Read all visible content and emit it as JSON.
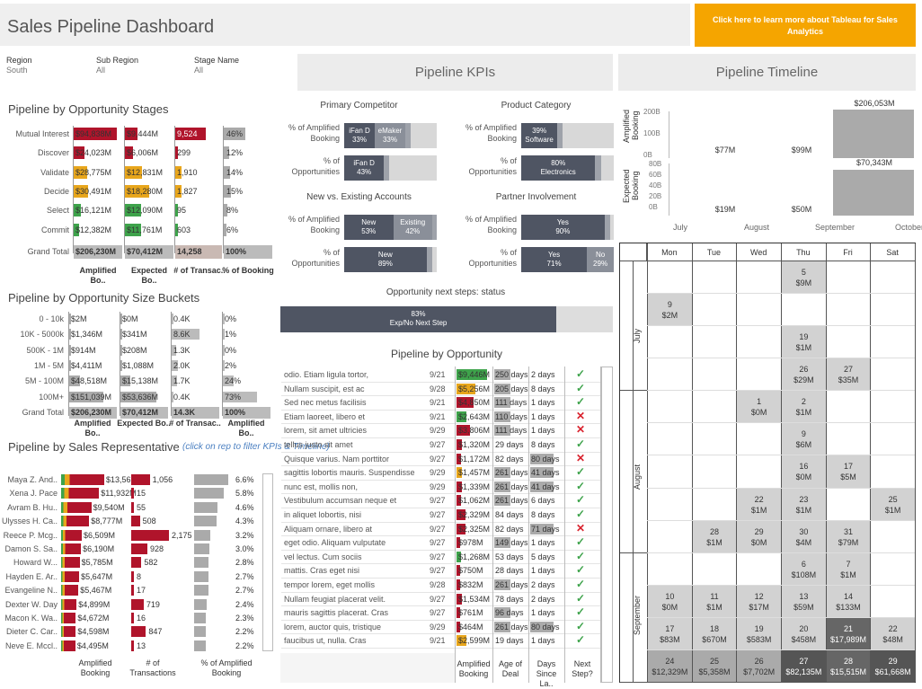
{
  "header": {
    "title": "Sales Pipeline Dashboard",
    "cta": "Click here to learn more about Tableau for Sales Analytics"
  },
  "filters": [
    {
      "label": "Region",
      "value": "South"
    },
    {
      "label": "Sub Region",
      "value": "All"
    },
    {
      "label": "Stage Name",
      "value": "All"
    }
  ],
  "stages": {
    "title": "Pipeline by Opportunity Stages",
    "cols": [
      "Amplified Bo..",
      "Expected Bo..",
      "# of Transac..",
      "% of Booking"
    ],
    "rows": [
      {
        "label": "Mutual Interest",
        "amp": "$94,838M",
        "exp": "$9,444M",
        "tx": "9,524",
        "pct": "46%",
        "ampf": 0.46,
        "expf": 0.13,
        "txf": 0.66,
        "pctf": 0.46,
        "c": "red"
      },
      {
        "label": "Discover",
        "amp": "$24,023M",
        "exp": "$6,006M",
        "tx": "299",
        "pct": "12%",
        "ampf": 0.12,
        "expf": 0.09,
        "txf": 0.02,
        "pctf": 0.12,
        "c": "red"
      },
      {
        "label": "Validate",
        "amp": "$28,775M",
        "exp": "$12,831M",
        "tx": "1,910",
        "pct": "14%",
        "ampf": 0.14,
        "expf": 0.18,
        "txf": 0.13,
        "pctf": 0.14,
        "c": "ora"
      },
      {
        "label": "Decide",
        "amp": "$30,491M",
        "exp": "$18,280M",
        "tx": "1,827",
        "pct": "15%",
        "ampf": 0.15,
        "expf": 0.26,
        "txf": 0.13,
        "pctf": 0.15,
        "c": "ora"
      },
      {
        "label": "Select",
        "amp": "$16,121M",
        "exp": "$12,090M",
        "tx": "95",
        "pct": "8%",
        "ampf": 0.08,
        "expf": 0.17,
        "txf": 0.01,
        "pctf": 0.08,
        "c": "grn"
      },
      {
        "label": "Commit",
        "amp": "$12,382M",
        "exp": "$11,761M",
        "tx": "603",
        "pct": "6%",
        "ampf": 0.06,
        "expf": 0.17,
        "txf": 0.04,
        "pctf": 0.06,
        "c": "grn"
      }
    ],
    "total": {
      "label": "Grand Total",
      "amp": "$206,230M",
      "exp": "$70,412M",
      "tx": "14,258",
      "pct": "100%"
    }
  },
  "sizes": {
    "title": "Pipeline by Opportunity Size Buckets",
    "cols": [
      "Amplified Bo..",
      "Expected Bo..",
      "# of Transac..",
      "Amplified Bo.."
    ],
    "rows": [
      {
        "label": "0 - 10k",
        "a": "$2M",
        "e": "$0M",
        "t": "0.4K",
        "p": "0%",
        "af": 0,
        "ef": 0,
        "tf": 0.03,
        "pf": 0
      },
      {
        "label": "10K - 5000k",
        "a": "$1,346M",
        "e": "$341M",
        "t": "8.6K",
        "p": "1%",
        "af": 0.01,
        "ef": 0.01,
        "tf": 0.6,
        "pf": 0.01
      },
      {
        "label": "500K - 1M",
        "a": "$914M",
        "e": "$208M",
        "t": "1.3K",
        "p": "0%",
        "af": 0.01,
        "ef": 0.01,
        "tf": 0.09,
        "pf": 0
      },
      {
        "label": "1M - 5M",
        "a": "$4,411M",
        "e": "$1,088M",
        "t": "2.0K",
        "p": "2%",
        "af": 0.02,
        "ef": 0.02,
        "tf": 0.14,
        "pf": 0.02
      },
      {
        "label": "5M - 100M",
        "a": "$48,518M",
        "e": "$15,138M",
        "t": "1.7K",
        "p": "24%",
        "af": 0.24,
        "ef": 0.21,
        "tf": 0.12,
        "pf": 0.24
      },
      {
        "label": "100M+",
        "a": "$151,039M",
        "e": "$53,636M",
        "t": "0.4K",
        "p": "73%",
        "af": 0.73,
        "ef": 0.76,
        "tf": 0.03,
        "pf": 0.73
      }
    ],
    "total": {
      "label": "Grand Total",
      "a": "$206,230M",
      "e": "$70,412M",
      "t": "14.3K",
      "p": "100%"
    }
  },
  "reps": {
    "title": "Pipeline by Sales Representative",
    "hint": "(click on rep to filter KPIs & Timeline)",
    "cols": [
      "Amplified Booking",
      "# of Transactions",
      "% of Amplified Booking"
    ],
    "rows": [
      {
        "n": "Maya Z. And..",
        "a": "$13,567M",
        "t": "1,056",
        "p": "6.6%",
        "af": 1.0,
        "tf": 0.49,
        "pf": 0.9
      },
      {
        "n": "Xena J. Pace",
        "a": "$11,932M",
        "t": "15",
        "p": "5.8%",
        "af": 0.88,
        "tf": 0.01,
        "pf": 0.79
      },
      {
        "n": "Avram B. Hu..",
        "a": "$9,540M",
        "t": "55",
        "p": "4.6%",
        "af": 0.7,
        "tf": 0.03,
        "pf": 0.63
      },
      {
        "n": "Ulysses H. Ca..",
        "a": "$8,777M",
        "t": "508",
        "p": "4.3%",
        "af": 0.65,
        "tf": 0.23,
        "pf": 0.59
      },
      {
        "n": "Reece P. Mcg..",
        "a": "$6,509M",
        "t": "2,175",
        "p": "3.2%",
        "af": 0.48,
        "tf": 1.0,
        "pf": 0.44
      },
      {
        "n": "Damon S. Sa..",
        "a": "$6,190M",
        "t": "928",
        "p": "3.0%",
        "af": 0.46,
        "tf": 0.43,
        "pf": 0.41
      },
      {
        "n": "Howard W...",
        "a": "$5,785M",
        "t": "582",
        "p": "2.8%",
        "af": 0.43,
        "tf": 0.27,
        "pf": 0.38
      },
      {
        "n": "Hayden E. Ar..",
        "a": "$5,647M",
        "t": "8",
        "p": "2.7%",
        "af": 0.42,
        "tf": 0.01,
        "pf": 0.37
      },
      {
        "n": "Evangeline N..",
        "a": "$5,467M",
        "t": "17",
        "p": "2.7%",
        "af": 0.4,
        "tf": 0.01,
        "pf": 0.37
      },
      {
        "n": "Dexter W. Day",
        "a": "$4,899M",
        "t": "719",
        "p": "2.4%",
        "af": 0.36,
        "tf": 0.33,
        "pf": 0.33
      },
      {
        "n": "Macon K. Wa..",
        "a": "$4,672M",
        "t": "16",
        "p": "2.3%",
        "af": 0.34,
        "tf": 0.01,
        "pf": 0.32
      },
      {
        "n": "Dieter C. Car..",
        "a": "$4,598M",
        "t": "847",
        "p": "2.2%",
        "af": 0.34,
        "tf": 0.39,
        "pf": 0.3
      },
      {
        "n": "Neve E. Mccl..",
        "a": "$4,495M",
        "t": "13",
        "p": "2.2%",
        "af": 0.33,
        "tf": 0.01,
        "pf": 0.3
      }
    ]
  },
  "kpis": {
    "title": "Pipeline KPIs",
    "competitor": {
      "title": "Primary Competitor",
      "r1": "% of Amplified Booking",
      "r2": "% of Opportunities",
      "s1": [
        {
          "l": "iFan D",
          "v": "33%",
          "w": 0.33
        },
        {
          "l": "eMaker",
          "v": "33%",
          "w": 0.33
        }
      ],
      "s2": [
        {
          "l": "iFan D",
          "v": "43%",
          "w": 0.43
        }
      ]
    },
    "category": {
      "title": "Product Category",
      "r1": "% of Amplified Booking",
      "r2": "% of Opportunities",
      "s1": [
        {
          "l": "39%",
          "v": "Software",
          "w": 0.39
        }
      ],
      "s2": [
        {
          "l": "80%",
          "v": "Electronics",
          "w": 0.8
        }
      ]
    },
    "newexist": {
      "title": "New vs. Existing Accounts",
      "r1": "% of Amplified Booking",
      "r2": "% of Opportunities",
      "s1": [
        {
          "l": "New",
          "v": "53%",
          "w": 0.53
        },
        {
          "l": "Existing",
          "v": "42%",
          "w": 0.42
        }
      ],
      "s2": [
        {
          "l": "New",
          "v": "89%",
          "w": 0.89
        }
      ]
    },
    "partner": {
      "title": "Partner Involvement",
      "r1": "% of Amplified Booking",
      "r2": "% of Opportunities",
      "s1": [
        {
          "l": "Yes",
          "v": "90%",
          "w": 0.9
        }
      ],
      "s2": [
        {
          "l": "Yes",
          "v": "71%",
          "w": 0.71
        },
        {
          "l": "No",
          "v": "29%",
          "w": 0.29
        }
      ]
    },
    "nextsteps": {
      "title": "Opportunity next steps: status",
      "pct": "83%",
      "label": "Exp/No Next Step",
      "w": 0.83
    }
  },
  "opps": {
    "title": "Pipeline by Opportunity",
    "cols": [
      "Amplified Booking",
      "Age of Deal",
      "Days Since La..",
      "Next Step?"
    ],
    "rows": [
      {
        "n": "odio. Etiam ligula tortor,",
        "d": "9/21",
        "a": "$9,446M",
        "c": "grn",
        "af": 0.9,
        "age": "250 days",
        "ag": 1,
        "ds": "2 days",
        "dg": 0,
        "ok": true
      },
      {
        "n": "Nullam suscipit, est ac",
        "d": "9/28",
        "a": "$5,256M",
        "c": "ora",
        "af": 0.55,
        "age": "205 days",
        "ag": 1,
        "ds": "8 days",
        "dg": 0,
        "ok": true
      },
      {
        "n": "Sed nec metus facilisis",
        "d": "9/21",
        "a": "$4,850M",
        "c": "red",
        "af": 0.5,
        "age": "111 days",
        "ag": 1,
        "ds": "1 days",
        "dg": 0,
        "ok": true
      },
      {
        "n": "Etiam laoreet, libero et",
        "d": "9/21",
        "a": "$2,643M",
        "c": "grn",
        "af": 0.3,
        "age": "110 days",
        "ag": 1,
        "ds": "1 days",
        "dg": 0,
        "ok": false
      },
      {
        "n": "lorem, sit amet ultricies",
        "d": "9/29",
        "a": "$3,806M",
        "c": "red",
        "af": 0.4,
        "age": "111 days",
        "ag": 1,
        "ds": "1 days",
        "dg": 0,
        "ok": false
      },
      {
        "n": "tellus justo sit amet",
        "d": "9/27",
        "a": "$1,320M",
        "c": "red",
        "af": 0.15,
        "age": "29 days",
        "ag": 0,
        "ds": "8 days",
        "dg": 0,
        "ok": true
      },
      {
        "n": "Quisque varius. Nam porttitor",
        "d": "9/27",
        "a": "$1,172M",
        "c": "red",
        "af": 0.13,
        "age": "82 days",
        "ag": 0,
        "ds": "80 days",
        "dg": 1,
        "ok": false
      },
      {
        "n": "sagittis lobortis mauris. Suspendisse",
        "d": "9/29",
        "a": "$1,457M",
        "c": "ora",
        "af": 0.16,
        "age": "261 days",
        "ag": 1,
        "ds": "41 days",
        "dg": 1,
        "ok": true
      },
      {
        "n": "nunc est, mollis non,",
        "d": "9/29",
        "a": "$1,339M",
        "c": "red",
        "af": 0.15,
        "age": "261 days",
        "ag": 1,
        "ds": "41 days",
        "dg": 1,
        "ok": true
      },
      {
        "n": "Vestibulum accumsan neque et",
        "d": "9/27",
        "a": "$1,062M",
        "c": "red",
        "af": 0.12,
        "age": "261 days",
        "ag": 1,
        "ds": "6 days",
        "dg": 0,
        "ok": true
      },
      {
        "n": "in aliquet lobortis, nisi",
        "d": "9/27",
        "a": "$2,329M",
        "c": "red",
        "af": 0.26,
        "age": "84 days",
        "ag": 0,
        "ds": "8 days",
        "dg": 0,
        "ok": true
      },
      {
        "n": "Aliquam ornare, libero at",
        "d": "9/27",
        "a": "$2,325M",
        "c": "red",
        "af": 0.26,
        "age": "82 days",
        "ag": 0,
        "ds": "71 days",
        "dg": 1,
        "ok": false
      },
      {
        "n": "eget odio. Aliquam vulputate",
        "d": "9/27",
        "a": "$978M",
        "c": "red",
        "af": 0.11,
        "age": "149 days",
        "ag": 1,
        "ds": "1 days",
        "dg": 0,
        "ok": true
      },
      {
        "n": "vel lectus. Cum sociis",
        "d": "9/27",
        "a": "$1,268M",
        "c": "grn",
        "af": 0.14,
        "age": "53 days",
        "ag": 0,
        "ds": "5 days",
        "dg": 0,
        "ok": true
      },
      {
        "n": "mattis. Cras eget nisi",
        "d": "9/27",
        "a": "$750M",
        "c": "red",
        "af": 0.08,
        "age": "28 days",
        "ag": 0,
        "ds": "1 days",
        "dg": 0,
        "ok": true
      },
      {
        "n": "tempor lorem, eget mollis",
        "d": "9/28",
        "a": "$832M",
        "c": "red",
        "af": 0.09,
        "age": "261 days",
        "ag": 1,
        "ds": "2 days",
        "dg": 0,
        "ok": true
      },
      {
        "n": "Nullam feugiat placerat velit.",
        "d": "9/27",
        "a": "$1,534M",
        "c": "red",
        "af": 0.17,
        "age": "78 days",
        "ag": 0,
        "ds": "2 days",
        "dg": 0,
        "ok": true
      },
      {
        "n": "mauris sagittis placerat. Cras",
        "d": "9/27",
        "a": "$761M",
        "c": "red",
        "af": 0.08,
        "age": "96 days",
        "ag": 1,
        "ds": "1 days",
        "dg": 0,
        "ok": true
      },
      {
        "n": "lorem, auctor quis, tristique",
        "d": "9/29",
        "a": "$464M",
        "c": "red",
        "af": 0.05,
        "age": "261 days",
        "ag": 1,
        "ds": "80 days",
        "dg": 1,
        "ok": true
      },
      {
        "n": "faucibus ut, nulla. Cras",
        "d": "9/21",
        "a": "$2,599M",
        "c": "ora",
        "af": 0.29,
        "age": "19 days",
        "ag": 0,
        "ds": "1 days",
        "dg": 0,
        "ok": true
      }
    ]
  },
  "timeline": {
    "title": "Pipeline Timeline",
    "ylab1": "Amplified Booking",
    "ylab2": "Expected Booking",
    "yt1": [
      "200B",
      "100B",
      "0B"
    ],
    "yt2": [
      "80B",
      "60B",
      "40B",
      "20B",
      "0B"
    ],
    "xt": [
      "July",
      "August",
      "September",
      "October"
    ],
    "amp": [
      {
        "m": "July",
        "v": "$77M",
        "f": 0.0
      },
      {
        "m": "August",
        "v": "$99M",
        "f": 0.0
      },
      {
        "m": "September",
        "v": "$206,053M",
        "f": 1.0
      }
    ],
    "exp": [
      {
        "m": "July",
        "v": "$19M",
        "f": 0.0
      },
      {
        "m": "August",
        "v": "$50M",
        "f": 0.0
      },
      {
        "m": "September",
        "v": "$70,343M",
        "f": 0.88
      }
    ]
  },
  "calendar": {
    "days": [
      "Mon",
      "Tue",
      "Wed",
      "Thu",
      "Fri",
      "Sat"
    ],
    "months": [
      "July",
      "August",
      "September"
    ],
    "cells": [
      {
        "w": 0,
        "d": 3,
        "day": "5",
        "v": "$9M",
        "s": 1
      },
      {
        "w": 1,
        "d": 0,
        "day": "9",
        "v": "$2M",
        "s": 1
      },
      {
        "w": 2,
        "d": 3,
        "day": "19",
        "v": "$1M",
        "s": 1
      },
      {
        "w": 3,
        "d": 3,
        "day": "26",
        "v": "$29M",
        "s": 1
      },
      {
        "w": 3,
        "d": 4,
        "day": "27",
        "v": "$35M",
        "s": 1
      },
      {
        "w": 4,
        "d": 2,
        "day": "1",
        "v": "$0M",
        "s": 1
      },
      {
        "w": 4,
        "d": 3,
        "day": "2",
        "v": "$1M",
        "s": 1
      },
      {
        "w": 5,
        "d": 3,
        "day": "9",
        "v": "$6M",
        "s": 1
      },
      {
        "w": 6,
        "d": 3,
        "day": "16",
        "v": "$0M",
        "s": 1
      },
      {
        "w": 6,
        "d": 4,
        "day": "17",
        "v": "$5M",
        "s": 1
      },
      {
        "w": 7,
        "d": 2,
        "day": "22",
        "v": "$1M",
        "s": 1
      },
      {
        "w": 7,
        "d": 3,
        "day": "23",
        "v": "$1M",
        "s": 1
      },
      {
        "w": 7,
        "d": 5,
        "day": "25",
        "v": "$1M",
        "s": 1
      },
      {
        "w": 8,
        "d": 1,
        "day": "28",
        "v": "$1M",
        "s": 1
      },
      {
        "w": 8,
        "d": 2,
        "day": "29",
        "v": "$0M",
        "s": 1
      },
      {
        "w": 8,
        "d": 3,
        "day": "30",
        "v": "$4M",
        "s": 1
      },
      {
        "w": 8,
        "d": 4,
        "day": "31",
        "v": "$79M",
        "s": 1
      },
      {
        "w": 9,
        "d": 3,
        "day": "6",
        "v": "$108M",
        "s": 1
      },
      {
        "w": 9,
        "d": 4,
        "day": "7",
        "v": "$1M",
        "s": 1
      },
      {
        "w": 10,
        "d": 0,
        "day": "10",
        "v": "$0M",
        "s": 1
      },
      {
        "w": 10,
        "d": 1,
        "day": "11",
        "v": "$1M",
        "s": 1
      },
      {
        "w": 10,
        "d": 2,
        "day": "12",
        "v": "$17M",
        "s": 1
      },
      {
        "w": 10,
        "d": 3,
        "day": "13",
        "v": "$59M",
        "s": 1
      },
      {
        "w": 10,
        "d": 4,
        "day": "14",
        "v": "$133M",
        "s": 1
      },
      {
        "w": 11,
        "d": 0,
        "day": "17",
        "v": "$83M",
        "s": 1
      },
      {
        "w": 11,
        "d": 1,
        "day": "18",
        "v": "$670M",
        "s": 1
      },
      {
        "w": 11,
        "d": 2,
        "day": "19",
        "v": "$583M",
        "s": 1
      },
      {
        "w": 11,
        "d": 3,
        "day": "20",
        "v": "$458M",
        "s": 1
      },
      {
        "w": 11,
        "d": 4,
        "day": "21",
        "v": "$17,989M",
        "s": 3
      },
      {
        "w": 11,
        "d": 5,
        "day": "22",
        "v": "$48M",
        "s": 1
      },
      {
        "w": 12,
        "d": 0,
        "day": "24",
        "v": "$12,329M",
        "s": 2
      },
      {
        "w": 12,
        "d": 1,
        "day": "25",
        "v": "$5,358M",
        "s": 2
      },
      {
        "w": 12,
        "d": 2,
        "day": "26",
        "v": "$7,702M",
        "s": 2
      },
      {
        "w": 12,
        "d": 3,
        "day": "27",
        "v": "$82,135M",
        "s": 4
      },
      {
        "w": 12,
        "d": 4,
        "day": "28",
        "v": "$15,515M",
        "s": 3
      },
      {
        "w": 12,
        "d": 5,
        "day": "29",
        "v": "$61,668M",
        "s": 4
      }
    ]
  }
}
